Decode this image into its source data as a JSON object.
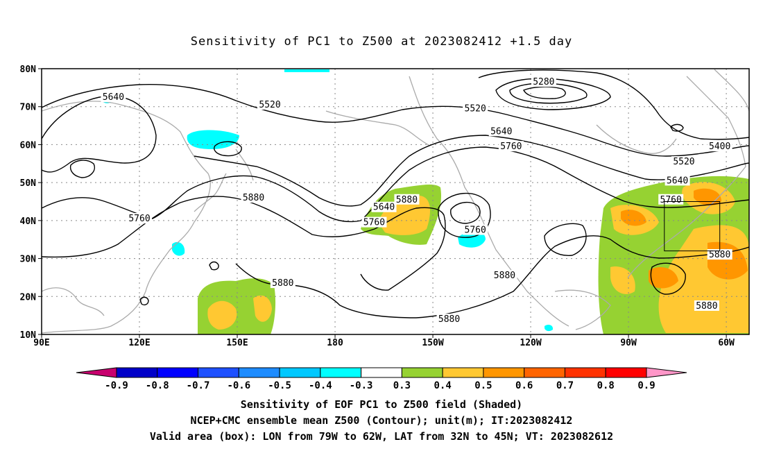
{
  "title": "Sensitivity of PC1 to Z500 at 2023082412 +1.5 day",
  "map": {
    "lon_range": [
      90,
      307
    ],
    "lat_range": [
      10,
      80
    ],
    "lat_ticks": [
      {
        "lat": 80,
        "label": "80N"
      },
      {
        "lat": 70,
        "label": "70N"
      },
      {
        "lat": 60,
        "label": "60N"
      },
      {
        "lat": 50,
        "label": "50N"
      },
      {
        "lat": 40,
        "label": "40N"
      },
      {
        "lat": 30,
        "label": "30N"
      },
      {
        "lat": 20,
        "label": "20N"
      },
      {
        "lat": 10,
        "label": "10N"
      }
    ],
    "lon_ticks": [
      {
        "lon": 90,
        "label": "90E"
      },
      {
        "lon": 120,
        "label": "120E"
      },
      {
        "lon": 150,
        "label": "150E"
      },
      {
        "lon": 180,
        "label": "180"
      },
      {
        "lon": 210,
        "label": "150W"
      },
      {
        "lon": 240,
        "label": "120W"
      },
      {
        "lon": 270,
        "label": "90W"
      },
      {
        "lon": 300,
        "label": "60W"
      }
    ],
    "valid_box": {
      "lon_min": 281,
      "lon_max": 298,
      "lat_min": 32,
      "lat_max": 45
    },
    "contour_labels": [
      {
        "text": "5280",
        "lon": 244,
        "lat": 76.5
      },
      {
        "text": "5640",
        "lon": 112,
        "lat": 72.5
      },
      {
        "text": "5520",
        "lon": 160,
        "lat": 70.5
      },
      {
        "text": "5520",
        "lon": 223,
        "lat": 69.5
      },
      {
        "text": "5640",
        "lon": 231,
        "lat": 63.5
      },
      {
        "text": "5760",
        "lon": 234,
        "lat": 59.5
      },
      {
        "text": "5400",
        "lon": 298,
        "lat": 59.5
      },
      {
        "text": "5520",
        "lon": 287,
        "lat": 55.5
      },
      {
        "text": "5640",
        "lon": 285,
        "lat": 50.5
      },
      {
        "text": "5880",
        "lon": 155,
        "lat": 46
      },
      {
        "text": "5880",
        "lon": 202,
        "lat": 45.5
      },
      {
        "text": "5640",
        "lon": 195,
        "lat": 43.5
      },
      {
        "text": "5760",
        "lon": 283,
        "lat": 45.5
      },
      {
        "text": "5760",
        "lon": 120,
        "lat": 40.5
      },
      {
        "text": "5760",
        "lon": 192,
        "lat": 39.5
      },
      {
        "text": "5760",
        "lon": 223,
        "lat": 37.5
      },
      {
        "text": "5880",
        "lon": 298,
        "lat": 31
      },
      {
        "text": "5880",
        "lon": 164,
        "lat": 23.5
      },
      {
        "text": "5880",
        "lon": 232,
        "lat": 25.5
      },
      {
        "text": "5880",
        "lon": 294,
        "lat": 17.5
      },
      {
        "text": "5880",
        "lon": 215,
        "lat": 14
      }
    ]
  },
  "colorbar": {
    "colors": [
      "#c8006e",
      "#0000c8",
      "#0000ff",
      "#1e50ff",
      "#1e8cff",
      "#00c8ff",
      "#00ffff",
      "#ffffff",
      "#96d232",
      "#ffc832",
      "#ff9600",
      "#ff6400",
      "#ff3200",
      "#ff0000",
      "#ff96c8"
    ],
    "labels": [
      "-0.9",
      "-0.8",
      "-0.7",
      "-0.6",
      "-0.5",
      "-0.4",
      "-0.3",
      "0.3",
      "0.4",
      "0.5",
      "0.6",
      "0.7",
      "0.8",
      "0.9"
    ]
  },
  "captions": {
    "line1": "Sensitivity of EOF PC1 to Z500 field (Shaded)",
    "line2": "NCEP+CMC ensemble mean Z500 (Contour); unit(m); IT:2023082412",
    "line3": "Valid area (box): LON from 79W to 62W, LAT from 32N to 45N; VT: 2023082612"
  }
}
